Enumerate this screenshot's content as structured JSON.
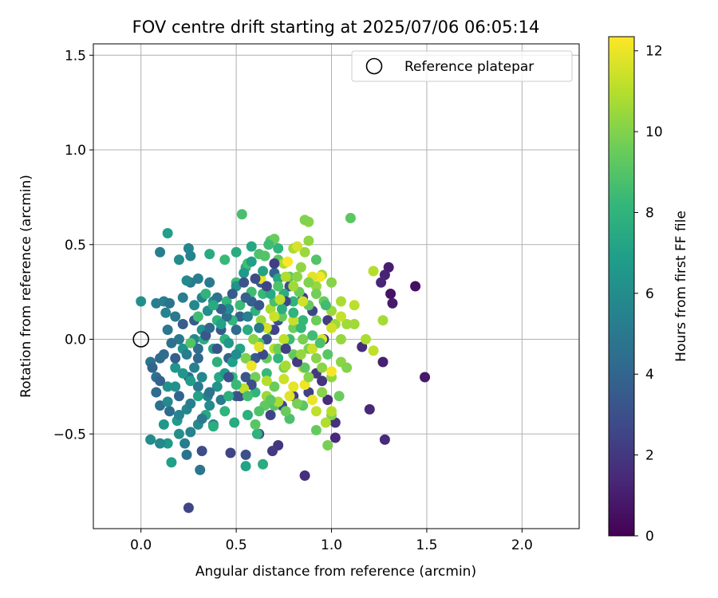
{
  "chart_data": {
    "type": "scatter",
    "title": "FOV centre drift starting at 2025/07/06 06:05:14",
    "xlabel": "Angular distance from reference (arcmin)",
    "ylabel": "Rotation from reference (arcmin)",
    "xlim": [
      -0.25,
      2.3
    ],
    "ylim": [
      -1.0,
      1.56
    ],
    "xticks": [
      0.0,
      0.5,
      1.0,
      1.5,
      2.0
    ],
    "xtick_labels": [
      "0.0",
      "0.5",
      "1.0",
      "1.5",
      "2.0"
    ],
    "yticks": [
      -0.5,
      0.0,
      0.5,
      1.0,
      1.5
    ],
    "ytick_labels": [
      "−0.5",
      "0.0",
      "0.5",
      "1.0",
      "1.5"
    ],
    "grid": true,
    "legend": {
      "placement": "top-right",
      "entries": [
        "Reference platepar"
      ]
    },
    "reference_point": {
      "x": 0.0,
      "y": 0.0,
      "name": "Reference platepar"
    },
    "colorbar": {
      "label": "Hours from first FF file",
      "colormap": "viridis",
      "range": [
        0,
        12.35
      ],
      "ticks": [
        0,
        2,
        4,
        6,
        8,
        10,
        12
      ],
      "tick_labels": [
        "0",
        "2",
        "4",
        "6",
        "8",
        "10",
        "12"
      ]
    },
    "points": [
      [
        1.44,
        0.28,
        0.5
      ],
      [
        1.49,
        -0.2,
        0.8
      ],
      [
        1.31,
        0.24,
        0.6
      ],
      [
        1.32,
        0.19,
        0.9
      ],
      [
        1.3,
        0.38,
        1.0
      ],
      [
        1.28,
        0.34,
        1.2
      ],
      [
        1.26,
        0.3,
        1.3
      ],
      [
        1.27,
        -0.12,
        1.1
      ],
      [
        1.28,
        -0.53,
        1.5
      ],
      [
        1.2,
        -0.37,
        1.4
      ],
      [
        1.16,
        -0.04,
        1.6
      ],
      [
        0.86,
        -0.72,
        1.7
      ],
      [
        0.72,
        -0.56,
        1.9
      ],
      [
        0.69,
        -0.59,
        2.1
      ],
      [
        1.02,
        -0.52,
        1.5
      ],
      [
        1.02,
        -0.44,
        1.8
      ],
      [
        0.98,
        -0.32,
        1.6
      ],
      [
        0.95,
        -0.22,
        1.8
      ],
      [
        0.25,
        -0.89,
        2.6
      ],
      [
        0.32,
        -0.59,
        2.9
      ],
      [
        0.47,
        -0.6,
        2.5
      ],
      [
        0.55,
        -0.61,
        3.0
      ],
      [
        0.62,
        -0.5,
        2.8
      ],
      [
        0.68,
        -0.4,
        2.5
      ],
      [
        0.74,
        -0.35,
        2.7
      ],
      [
        0.8,
        -0.3,
        2.3
      ],
      [
        0.88,
        -0.28,
        2.4
      ],
      [
        0.92,
        -0.18,
        2.0
      ],
      [
        0.96,
        0.0,
        1.9
      ],
      [
        0.98,
        0.1,
        2.2
      ],
      [
        0.9,
        0.15,
        2.6
      ],
      [
        0.85,
        0.22,
        2.4
      ],
      [
        0.78,
        0.28,
        2.9
      ],
      [
        0.72,
        0.1,
        3.0
      ],
      [
        0.66,
        0.0,
        3.2
      ],
      [
        0.6,
        -0.1,
        3.5
      ],
      [
        0.55,
        -0.2,
        3.3
      ],
      [
        0.5,
        -0.3,
        3.6
      ],
      [
        0.46,
        -0.1,
        3.8
      ],
      [
        0.42,
        0.05,
        3.4
      ],
      [
        0.52,
        0.12,
        3.9
      ],
      [
        0.58,
        0.2,
        3.7
      ],
      [
        0.63,
        0.3,
        3.6
      ],
      [
        0.7,
        0.35,
        4.0
      ],
      [
        0.3,
        -0.1,
        4.1
      ],
      [
        0.25,
        -0.2,
        4.2
      ],
      [
        0.2,
        -0.3,
        4.0
      ],
      [
        0.15,
        -0.38,
        4.4
      ],
      [
        0.1,
        -0.35,
        4.6
      ],
      [
        0.08,
        -0.2,
        4.5
      ],
      [
        0.1,
        -0.1,
        4.3
      ],
      [
        0.05,
        -0.12,
        4.8
      ],
      [
        0.14,
        0.05,
        4.9
      ],
      [
        0.18,
        0.12,
        5.0
      ],
      [
        0.22,
        0.22,
        5.2
      ],
      [
        0.26,
        0.3,
        5.1
      ],
      [
        0.1,
        0.46,
        5.3
      ],
      [
        0.12,
        0.2,
        5.4
      ],
      [
        0.15,
        0.19,
        4.7
      ],
      [
        0.25,
        0.48,
        5.6
      ],
      [
        0.26,
        0.44,
        5.5
      ],
      [
        0.24,
        0.31,
        5.8
      ],
      [
        0.2,
        0.42,
        6.0
      ],
      [
        0.38,
        0.2,
        5.9
      ],
      [
        0.35,
        0.15,
        6.1
      ],
      [
        0.32,
        0.05,
        6.2
      ],
      [
        0.28,
        0.0,
        5.7
      ],
      [
        0.22,
        -0.05,
        6.3
      ],
      [
        0.18,
        -0.15,
        6.4
      ],
      [
        0.14,
        -0.25,
        6.2
      ],
      [
        0.12,
        -0.45,
        6.5
      ],
      [
        0.14,
        -0.55,
        6.6
      ],
      [
        0.05,
        -0.53,
        6.0
      ],
      [
        0.1,
        -0.55,
        5.8
      ],
      [
        0.2,
        -0.5,
        6.1
      ],
      [
        0.3,
        -0.45,
        5.9
      ],
      [
        0.38,
        -0.45,
        5.5
      ],
      [
        0.42,
        -0.32,
        5.2
      ],
      [
        0.35,
        -0.3,
        5.4
      ],
      [
        0.3,
        -0.25,
        5.0
      ],
      [
        0.24,
        -0.37,
        5.7
      ],
      [
        0.19,
        -0.43,
        6.7
      ],
      [
        0.16,
        -0.65,
        6.9
      ],
      [
        0.24,
        -0.61,
        4.6
      ],
      [
        0.31,
        -0.69,
        4.8
      ],
      [
        0.23,
        -0.55,
        5.3
      ],
      [
        0.26,
        -0.49,
        5.5
      ],
      [
        0.0,
        0.2,
        6.2
      ],
      [
        0.08,
        0.19,
        5.3
      ],
      [
        0.13,
        0.14,
        5.5
      ],
      [
        0.14,
        0.56,
        6.9
      ],
      [
        0.36,
        0.45,
        7.5
      ],
      [
        0.44,
        0.42,
        8.3
      ],
      [
        0.5,
        0.46,
        7.6
      ],
      [
        0.53,
        0.66,
        8.7
      ],
      [
        0.55,
        0.38,
        7.7
      ],
      [
        0.58,
        0.49,
        7.3
      ],
      [
        0.65,
        0.44,
        7.0
      ],
      [
        0.72,
        0.32,
        7.4
      ],
      [
        0.75,
        0.24,
        7.7
      ],
      [
        0.8,
        0.2,
        8.0
      ],
      [
        0.85,
        0.1,
        8.2
      ],
      [
        0.78,
        0.0,
        8.4
      ],
      [
        0.72,
        -0.1,
        8.1
      ],
      [
        0.66,
        -0.18,
        8.3
      ],
      [
        0.6,
        -0.28,
        8.0
      ],
      [
        0.56,
        -0.4,
        7.8
      ],
      [
        0.61,
        -0.5,
        7.9
      ],
      [
        0.64,
        -0.66,
        7.6
      ],
      [
        0.55,
        -0.67,
        7.2
      ],
      [
        0.49,
        -0.44,
        7.5
      ],
      [
        0.46,
        -0.3,
        7.8
      ],
      [
        0.41,
        -0.2,
        7.4
      ],
      [
        0.38,
        -0.05,
        7.1
      ],
      [
        0.33,
        0.0,
        7.6
      ],
      [
        0.4,
        0.1,
        8.0
      ],
      [
        0.45,
        0.2,
        8.2
      ],
      [
        0.5,
        0.3,
        8.5
      ],
      [
        0.56,
        0.4,
        8.6
      ],
      [
        0.62,
        0.45,
        8.9
      ],
      [
        0.68,
        0.52,
        9.0
      ],
      [
        0.72,
        0.42,
        9.2
      ],
      [
        0.78,
        0.33,
        9.3
      ],
      [
        0.83,
        0.25,
        9.5
      ],
      [
        0.88,
        0.18,
        9.4
      ],
      [
        0.92,
        0.1,
        9.6
      ],
      [
        0.85,
        0.0,
        9.8
      ],
      [
        0.8,
        -0.08,
        9.7
      ],
      [
        0.75,
        -0.15,
        9.9
      ],
      [
        0.7,
        -0.25,
        9.5
      ],
      [
        0.65,
        -0.35,
        9.3
      ],
      [
        0.6,
        -0.45,
        9.1
      ],
      [
        0.7,
        -0.35,
        9.0
      ],
      [
        0.78,
        -0.42,
        8.8
      ],
      [
        0.85,
        -0.35,
        9.2
      ],
      [
        0.92,
        -0.48,
        9.4
      ],
      [
        0.98,
        -0.56,
        9.8
      ],
      [
        1.0,
        -0.4,
        10.0
      ],
      [
        0.95,
        -0.28,
        10.1
      ],
      [
        1.0,
        -0.2,
        10.3
      ],
      [
        1.05,
        -0.12,
        10.2
      ],
      [
        1.08,
        -0.15,
        10.0
      ],
      [
        1.05,
        0.0,
        10.4
      ],
      [
        1.02,
        0.08,
        10.6
      ],
      [
        1.0,
        0.15,
        10.5
      ],
      [
        1.05,
        0.2,
        10.8
      ],
      [
        1.08,
        0.08,
        10.6
      ],
      [
        1.1,
        0.64,
        9.2
      ],
      [
        0.88,
        0.62,
        10.1
      ],
      [
        0.86,
        0.63,
        10.0
      ],
      [
        0.88,
        0.52,
        10.3
      ],
      [
        0.86,
        0.46,
        10.5
      ],
      [
        0.8,
        0.48,
        10.7
      ],
      [
        0.75,
        0.4,
        10.9
      ],
      [
        0.82,
        0.33,
        10.2
      ],
      [
        0.92,
        0.28,
        10.4
      ],
      [
        0.95,
        0.34,
        10.6
      ],
      [
        1.0,
        0.3,
        10.1
      ],
      [
        0.7,
        0.53,
        9.5
      ],
      [
        0.65,
        0.44,
        9.0
      ],
      [
        0.72,
        0.28,
        8.9
      ],
      [
        0.58,
        0.25,
        8.5
      ],
      [
        0.52,
        0.18,
        8.4
      ],
      [
        0.48,
        0.1,
        8.1
      ],
      [
        0.44,
        0.0,
        7.9
      ],
      [
        0.4,
        -0.12,
        7.8
      ],
      [
        0.48,
        -0.2,
        8.2
      ],
      [
        0.55,
        -0.1,
        8.6
      ],
      [
        0.62,
        -0.02,
        8.8
      ],
      [
        0.68,
        0.05,
        9.1
      ],
      [
        0.74,
        0.12,
        9.4
      ],
      [
        0.8,
        0.06,
        9.6
      ],
      [
        0.88,
        -0.05,
        9.9
      ],
      [
        0.92,
        -0.1,
        10.1
      ],
      [
        0.95,
        -0.15,
        10.2
      ],
      [
        1.12,
        0.08,
        10.6
      ],
      [
        1.18,
        0.0,
        10.8
      ],
      [
        1.22,
        -0.06,
        11.2
      ],
      [
        1.22,
        0.36,
        11.0
      ],
      [
        1.27,
        0.1,
        10.7
      ],
      [
        1.12,
        0.18,
        11.1
      ],
      [
        1.05,
        0.12,
        11.3
      ],
      [
        1.0,
        0.06,
        11.5
      ],
      [
        0.95,
        0.0,
        11.7
      ],
      [
        0.9,
        -0.05,
        11.4
      ],
      [
        0.85,
        -0.15,
        11.6
      ],
      [
        0.8,
        -0.25,
        11.9
      ],
      [
        0.78,
        -0.3,
        11.8
      ],
      [
        0.86,
        -0.24,
        12.1
      ],
      [
        0.9,
        -0.32,
        12.0
      ],
      [
        0.92,
        -0.38,
        11.2
      ],
      [
        1.0,
        -0.17,
        12.2
      ],
      [
        1.0,
        -0.38,
        11.0
      ],
      [
        0.97,
        -0.44,
        10.9
      ],
      [
        0.94,
        0.33,
        12.1
      ],
      [
        0.9,
        0.33,
        11.8
      ],
      [
        0.85,
        0.2,
        11.5
      ],
      [
        0.8,
        0.1,
        11.3
      ],
      [
        0.75,
        0.0,
        11.1
      ],
      [
        0.7,
        -0.05,
        11.0
      ],
      [
        0.75,
        -0.21,
        11.4
      ],
      [
        0.72,
        -0.33,
        10.8
      ],
      [
        0.66,
        -0.3,
        10.5
      ],
      [
        0.63,
        0.32,
        12.0
      ],
      [
        0.77,
        0.41,
        12.3
      ],
      [
        0.82,
        0.49,
        11.6
      ],
      [
        0.68,
        0.16,
        10.8
      ],
      [
        0.63,
        0.1,
        10.5
      ],
      [
        0.59,
        0.0,
        10.2
      ],
      [
        0.55,
        -0.1,
        9.9
      ],
      [
        0.6,
        -0.2,
        9.7
      ],
      [
        0.66,
        -0.1,
        9.4
      ],
      [
        0.72,
        -0.05,
        9.6
      ],
      [
        0.81,
        -0.09,
        9.3
      ],
      [
        0.86,
        -0.15,
        9.2
      ],
      [
        0.7,
        0.2,
        8.7
      ],
      [
        0.64,
        0.24,
        8.3
      ],
      [
        0.6,
        0.15,
        7.9
      ],
      [
        0.56,
        0.05,
        7.5
      ],
      [
        0.52,
        -0.05,
        7.2
      ],
      [
        0.48,
        -0.12,
        6.9
      ],
      [
        0.44,
        -0.18,
        6.6
      ],
      [
        0.4,
        -0.25,
        6.3
      ],
      [
        0.36,
        -0.35,
        6.0
      ],
      [
        0.32,
        -0.2,
        5.7
      ],
      [
        0.28,
        -0.15,
        5.4
      ],
      [
        0.24,
        -0.08,
        5.1
      ],
      [
        0.2,
        0.0,
        4.9
      ],
      [
        0.16,
        -0.02,
        4.6
      ],
      [
        0.12,
        -0.08,
        4.4
      ],
      [
        0.08,
        -0.28,
        4.2
      ],
      [
        0.06,
        -0.15,
        4.0
      ],
      [
        0.1,
        -0.22,
        3.9
      ],
      [
        0.18,
        -0.1,
        3.7
      ],
      [
        0.22,
        0.08,
        3.6
      ],
      [
        0.28,
        0.1,
        3.5
      ],
      [
        0.34,
        0.02,
        3.4
      ],
      [
        0.4,
        -0.05,
        3.2
      ],
      [
        0.46,
        -0.2,
        3.1
      ],
      [
        0.52,
        -0.3,
        3.0
      ],
      [
        0.58,
        -0.24,
        2.9
      ],
      [
        0.64,
        -0.08,
        2.7
      ],
      [
        0.7,
        0.05,
        2.5
      ],
      [
        0.76,
        -0.05,
        2.3
      ],
      [
        0.82,
        -0.12,
        2.1
      ],
      [
        0.76,
        0.2,
        2.6
      ],
      [
        0.62,
        0.18,
        3.3
      ],
      [
        0.55,
        0.22,
        3.8
      ],
      [
        0.5,
        0.05,
        4.3
      ],
      [
        0.45,
        0.12,
        4.5
      ],
      [
        0.4,
        0.22,
        4.7
      ],
      [
        0.36,
        0.3,
        5.0
      ],
      [
        0.3,
        0.32,
        5.3
      ],
      [
        0.32,
        0.22,
        5.6
      ],
      [
        0.28,
        0.18,
        5.8
      ],
      [
        0.46,
        0.16,
        6.0
      ],
      [
        0.5,
        0.28,
        6.3
      ],
      [
        0.54,
        0.35,
        6.6
      ],
      [
        0.58,
        0.41,
        6.9
      ],
      [
        0.64,
        0.36,
        7.2
      ],
      [
        0.68,
        0.24,
        7.4
      ],
      [
        0.74,
        0.16,
        7.7
      ],
      [
        0.8,
        0.14,
        8.0
      ],
      [
        0.84,
        0.06,
        8.2
      ],
      [
        0.9,
        0.02,
        8.5
      ],
      [
        0.94,
        -0.02,
        8.8
      ],
      [
        0.98,
        -0.08,
        9.1
      ],
      [
        0.96,
        0.2,
        9.4
      ],
      [
        0.92,
        0.24,
        9.7
      ],
      [
        0.88,
        0.3,
        10.0
      ],
      [
        0.84,
        0.38,
        10.3
      ],
      [
        0.8,
        0.28,
        10.6
      ],
      [
        0.76,
        0.33,
        10.9
      ],
      [
        0.73,
        0.21,
        11.2
      ],
      [
        0.7,
        0.12,
        11.4
      ],
      [
        0.66,
        0.06,
        11.6
      ],
      [
        0.62,
        -0.04,
        11.8
      ],
      [
        0.58,
        -0.14,
        12.0
      ],
      [
        0.54,
        -0.26,
        11.3
      ],
      [
        0.66,
        -0.22,
        11.0
      ],
      [
        0.76,
        -0.14,
        10.7
      ],
      [
        0.84,
        -0.08,
        10.4
      ],
      [
        0.88,
        -0.2,
        10.1
      ],
      [
        0.82,
        -0.34,
        9.8
      ],
      [
        0.76,
        -0.38,
        9.5
      ],
      [
        0.68,
        -0.32,
        9.2
      ],
      [
        0.62,
        -0.38,
        8.9
      ],
      [
        0.56,
        -0.3,
        8.6
      ],
      [
        0.5,
        -0.24,
        8.3
      ],
      [
        0.44,
        -0.38,
        8.0
      ],
      [
        0.38,
        -0.46,
        7.7
      ],
      [
        0.34,
        -0.4,
        7.4
      ],
      [
        0.3,
        -0.3,
        7.1
      ],
      [
        0.26,
        -0.22,
        6.8
      ],
      [
        0.22,
        -0.18,
        6.5
      ],
      [
        0.18,
        -0.25,
        6.2
      ],
      [
        0.14,
        -0.33,
        5.9
      ],
      [
        0.2,
        -0.4,
        5.6
      ],
      [
        0.26,
        -0.34,
        5.3
      ],
      [
        0.32,
        -0.42,
        5.0
      ],
      [
        0.36,
        -0.28,
        4.7
      ],
      [
        0.3,
        -0.05,
        4.4
      ],
      [
        0.36,
        0.06,
        4.1
      ],
      [
        0.42,
        0.16,
        3.8
      ],
      [
        0.48,
        0.24,
        3.5
      ],
      [
        0.54,
        0.3,
        3.2
      ],
      [
        0.6,
        0.32,
        2.9
      ],
      [
        0.66,
        0.28,
        2.6
      ],
      [
        0.7,
        0.4,
        2.3
      ],
      [
        0.62,
        0.06,
        5.0
      ],
      [
        0.56,
        0.12,
        5.5
      ],
      [
        0.5,
        -0.08,
        6.0
      ],
      [
        0.46,
        -0.02,
        6.5
      ],
      [
        0.42,
        0.08,
        7.0
      ],
      [
        0.38,
        0.18,
        7.5
      ],
      [
        0.34,
        0.24,
        8.0
      ],
      [
        0.3,
        0.12,
        8.5
      ],
      [
        0.26,
        -0.02,
        9.0
      ],
      [
        0.72,
        0.48,
        8.0
      ],
      [
        0.67,
        0.5,
        8.5
      ],
      [
        0.92,
        0.42,
        9.0
      ],
      [
        0.97,
        0.18,
        8.5
      ],
      [
        1.04,
        -0.3,
        9.5
      ]
    ]
  }
}
